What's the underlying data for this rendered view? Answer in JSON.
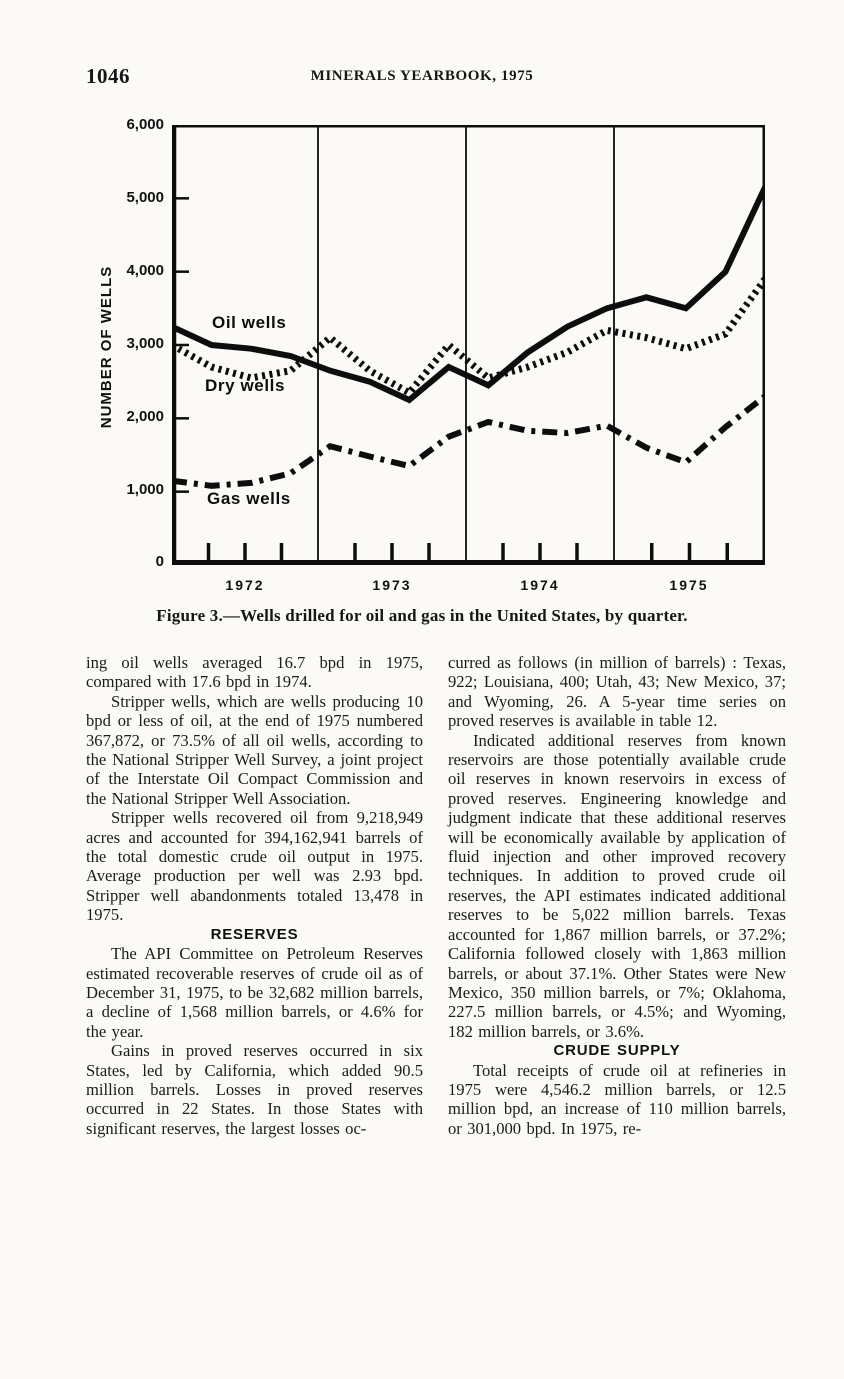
{
  "page": {
    "page_number": "1046",
    "running_title": "MINERALS YEARBOOK, 1975"
  },
  "figure": {
    "caption": "Figure 3.—Wells drilled for oil and gas in the United States, by quarter.",
    "y_axis_label": "NUMBER OF WELLS",
    "y_ticks": [
      "6,000",
      "5,000",
      "4,000",
      "3,000",
      "2,000",
      "1,000",
      "0"
    ],
    "year_labels": [
      "1972",
      "1973",
      "1974",
      "1975"
    ],
    "series_labels": {
      "oil": "Oil wells",
      "dry": "Dry wells",
      "gas": "Gas wells"
    }
  },
  "chart_data": {
    "type": "line",
    "title": "Figure 3.—Wells drilled for oil and gas in the United States, by quarter.",
    "xlabel": "",
    "ylabel": "NUMBER OF WELLS",
    "ylim": [
      0,
      6000
    ],
    "grid": "vertical-year-separators",
    "legend_position": "inline-labels",
    "x": [
      "1972 Q1",
      "1972 Q2",
      "1972 Q3",
      "1972 Q4",
      "1973 Q1",
      "1973 Q2",
      "1973 Q3",
      "1973 Q4",
      "1974 Q1",
      "1974 Q2",
      "1974 Q3",
      "1974 Q4",
      "1975 Q1",
      "1975 Q2",
      "1975 Q3",
      "1975 Q4"
    ],
    "x_tick_labels": [
      "1972",
      "1973",
      "1974",
      "1975"
    ],
    "series": [
      {
        "name": "Oil wells",
        "style": "solid",
        "values": [
          3250,
          3000,
          2950,
          2850,
          2650,
          2500,
          2250,
          2700,
          2450,
          2900,
          3250,
          3500,
          3650,
          3500,
          4000,
          5150
        ]
      },
      {
        "name": "Dry wells",
        "style": "dotted",
        "values": [
          3000,
          2700,
          2550,
          2650,
          3100,
          2650,
          2350,
          3000,
          2550,
          2700,
          2900,
          3200,
          3100,
          2950,
          3150,
          3900
        ]
      },
      {
        "name": "Gas wells",
        "style": "dash-dot",
        "values": [
          1150,
          1080,
          1120,
          1250,
          1620,
          1480,
          1350,
          1750,
          1950,
          1830,
          1800,
          1900,
          1600,
          1400,
          1880,
          2300
        ]
      }
    ]
  },
  "left_column": {
    "p1": "ing oil wells averaged 16.7 bpd in 1975, compared with 17.6 bpd in 1974.",
    "p2": "Stripper wells, which are wells producing 10 bpd or less of oil, at the end of 1975 numbered 367,872, or 73.5% of all oil wells, according to the National Stripper Well Survey, a joint project of the Interstate Oil Compact Commission and the National Stripper Well Association.",
    "p3": "Stripper wells recovered oil from 9,218,949 acres and accounted for 394,162,941 barrels of the total domestic crude oil output in 1975. Average production per well was 2.93 bpd. Stripper well abandonments totaled 13,478 in 1975.",
    "heading": "RESERVES",
    "p4": "The API Committee on Petroleum Reserves estimated recoverable reserves of crude oil as of December 31, 1975, to be 32,682 million barrels, a decline of 1,568 million barrels, or 4.6% for the year.",
    "p5": "Gains in proved reserves occurred in six States, led by California, which added 90.5 million barrels. Losses in proved reserves occurred in 22 States. In those States with significant reserves, the largest losses oc-"
  },
  "right_column": {
    "p1": "curred as follows (in million of barrels) : Texas, 922; Louisiana, 400; Utah, 43; New Mexico, 37; and Wyoming, 26. A 5-year time series on proved reserves is available in table 12.",
    "p2": "Indicated additional reserves from known reservoirs are those potentially available crude oil reserves in known reservoirs in excess of proved reserves. Engineering knowledge and judgment indicate that these additional reserves will be economically available by application of fluid injection and other improved recovery techniques. In addition to proved crude oil reserves, the API estimates indicated additional reserves to be 5,022 million barrels. Texas accounted for 1,867 million barrels, or 37.2%; California followed closely with 1,863 million barrels, or about 37.1%. Other States were New Mexico, 350 million barrels, or 7%; Oklahoma, 227.5 million barrels, or 4.5%; and Wyoming, 182 million barrels, or 3.6%.",
    "heading": "CRUDE SUPPLY",
    "p3": "Total receipts of crude oil at refineries in 1975 were 4,546.2 million barrels, or 12.5 million bpd, an increase of 110 million barrels, or 301,000 bpd. In 1975, re-"
  }
}
